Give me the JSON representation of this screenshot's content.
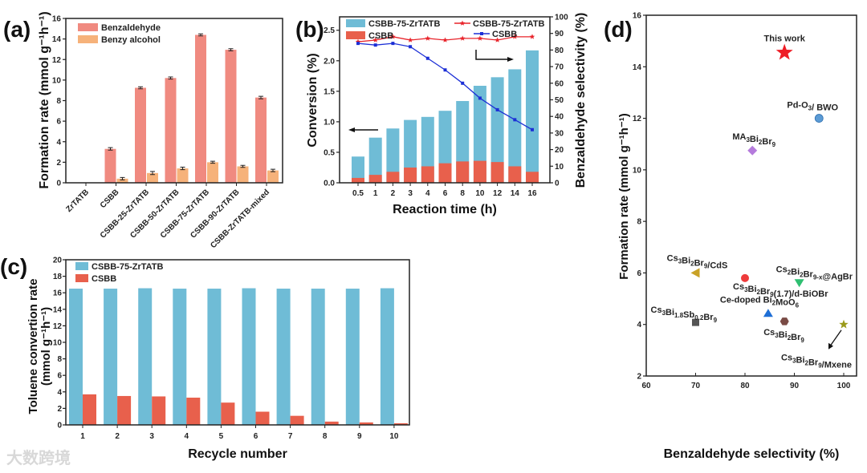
{
  "watermark": "大数跨境",
  "chart_data": [
    {
      "panel": "(a)",
      "type": "bar",
      "xlabel": "",
      "ylabel": "Formation rate (mmol g⁻¹h⁻¹)",
      "ylim": [
        0,
        16
      ],
      "yticks": [
        0,
        2,
        4,
        6,
        8,
        10,
        12,
        14,
        16
      ],
      "categories": [
        "ZrTATB",
        "CSBB",
        "CSBB-25-ZrTATB",
        "CSBB-50-ZrTATB",
        "CSBB-75-ZrTATB",
        "CSBB-90-ZrTATB",
        "CSBB-ZrTATB-mixed"
      ],
      "series": [
        {
          "name": "Benzaldehyde",
          "color": "#f08a80",
          "values": [
            0,
            3.3,
            9.25,
            10.2,
            14.4,
            12.95,
            8.3
          ],
          "errors": [
            0,
            0.12,
            0.1,
            0.1,
            0.1,
            0.1,
            0.12
          ]
        },
        {
          "name": "Benzy alcohol",
          "color": "#f6b27a",
          "values": [
            0,
            0.4,
            0.95,
            1.4,
            2.0,
            1.6,
            1.2
          ],
          "errors": [
            0,
            0.12,
            0.15,
            0.12,
            0.1,
            0.1,
            0.12
          ]
        }
      ],
      "legend": "top-left",
      "grid": false
    },
    {
      "panel": "(b)",
      "type": "bar+line",
      "xlabel": "Reaction time (h)",
      "ylabel": "Conversion (%)",
      "y2label": "Benzaldehyde selectivity (%)",
      "ylim": [
        0,
        2.72
      ],
      "yticks": [
        0.0,
        0.5,
        1.0,
        1.5,
        2.0,
        2.5
      ],
      "y2lim": [
        0,
        100
      ],
      "y2ticks": [
        0,
        10,
        20,
        30,
        40,
        50,
        60,
        70,
        80,
        90,
        100
      ],
      "categories": [
        "0.5",
        "1",
        "2",
        "3",
        "4",
        "6",
        "8",
        "10",
        "12",
        "14",
        "16"
      ],
      "bar_series": [
        {
          "name": "CSBB-75-ZrTATB",
          "color": "#6fbcd6",
          "values": [
            0.43,
            0.74,
            0.89,
            1.03,
            1.08,
            1.18,
            1.34,
            1.59,
            1.73,
            1.86,
            2.17
          ]
        },
        {
          "name": "CSBB",
          "color": "#e8604c",
          "values": [
            0.08,
            0.13,
            0.18,
            0.25,
            0.27,
            0.32,
            0.35,
            0.36,
            0.34,
            0.27,
            0.18
          ]
        }
      ],
      "line_series": [
        {
          "name": "CSBB-75-ZrTATB",
          "color": "#e8232a",
          "marker": "star",
          "values": [
            85,
            86,
            88,
            86,
            87,
            86,
            87,
            87,
            86,
            88,
            88
          ]
        },
        {
          "name": "CSBB",
          "color": "#1c2fd6",
          "marker": "square",
          "values": [
            84,
            83,
            84,
            82,
            75,
            68,
            60,
            51,
            44,
            38,
            32
          ]
        }
      ],
      "legend": "top",
      "grid": false
    },
    {
      "panel": "(c)",
      "type": "bar",
      "xlabel": "Recycle number",
      "ylabel": [
        "Toluene convertion rate",
        "(mmol g⁻¹h⁻¹)"
      ],
      "ylim": [
        0,
        20
      ],
      "yticks": [
        0,
        2,
        4,
        6,
        8,
        10,
        12,
        14,
        16,
        18,
        20
      ],
      "categories": [
        "1",
        "2",
        "3",
        "4",
        "5",
        "6",
        "7",
        "8",
        "9",
        "10"
      ],
      "series": [
        {
          "name": "CSBB-75-ZrTATB",
          "color": "#6fbcd6",
          "values": [
            16.5,
            16.5,
            16.55,
            16.5,
            16.5,
            16.55,
            16.5,
            16.5,
            16.5,
            16.55
          ]
        },
        {
          "name": "CSBB",
          "color": "#e8604c",
          "values": [
            3.7,
            3.5,
            3.45,
            3.3,
            2.7,
            1.6,
            1.1,
            0.4,
            0.3,
            0.2
          ]
        }
      ],
      "legend": "top-left",
      "grid": false
    },
    {
      "panel": "(d)",
      "type": "scatter",
      "xlabel": "Benzaldehyde selectivity (%)",
      "ylabel": "Formation rate (mmol g⁻¹h⁻¹)",
      "xlim": [
        60,
        102.6
      ],
      "ylim": [
        2,
        16
      ],
      "xticks": [
        60,
        70,
        80,
        90,
        100
      ],
      "yticks": [
        2,
        4,
        6,
        8,
        10,
        12,
        14,
        16
      ],
      "points": [
        {
          "label": "This work",
          "x": 88,
          "y": 14.55,
          "marker": "star",
          "color": "#ee1c25",
          "label_color": "#e8232a"
        },
        {
          "label": "Pd-O3/ BWO",
          "x": 95,
          "y": 12.0,
          "marker": "sphere",
          "color": "#5b9bd5",
          "label_color": "#222222"
        },
        {
          "label": "MA3Bi2Br9",
          "x": 81.5,
          "y": 10.75,
          "marker": "diamond",
          "color": "#b57bdc",
          "label_color": "#222222"
        },
        {
          "label": "Cs3Bi2Br9/CdS",
          "x": 70,
          "y": 6.0,
          "marker": "triangle-left",
          "color": "#c9a227",
          "label_color": "#222222"
        },
        {
          "label": "Cs3Bi2Br9(1.7)/d-BiOBr",
          "x": 80,
          "y": 5.8,
          "marker": "circle",
          "color": "#ee3b3b",
          "label_color": "#222222"
        },
        {
          "label": "Cs2Bi2Br9-x@AgBr",
          "x": 91,
          "y": 5.6,
          "marker": "triangle-down",
          "color": "#2fbf71",
          "label_color": "#222222"
        },
        {
          "label": "Ce-doped Bi2MoO6",
          "x": 84.7,
          "y": 4.45,
          "marker": "triangle-up",
          "color": "#1f6fd6",
          "label_color": "#222222"
        },
        {
          "label": "Cs3Bi2Br9",
          "x": 88,
          "y": 4.12,
          "marker": "hexagon",
          "color": "#7a4b45",
          "label_color": "#222222"
        },
        {
          "label": "Cs3Bi1.8Sb0.2Br9",
          "x": 70,
          "y": 4.08,
          "marker": "square",
          "color": "#555555",
          "label_color": "#222222"
        },
        {
          "label": "Cs3Bi2Br9/Mxene",
          "x": 100,
          "y": 4.0,
          "marker": "star",
          "color": "#9a9a1a",
          "label_color": "#222222"
        }
      ],
      "grid": false
    }
  ]
}
